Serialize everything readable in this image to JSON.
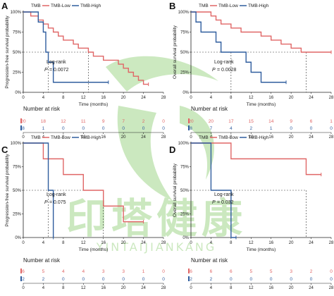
{
  "colors": {
    "low": "#e06666",
    "high": "#2f5d9e",
    "axis": "#222222",
    "watermark": "#6cbf4a"
  },
  "legend": {
    "title": "TMB",
    "low_label": "TMB-Low",
    "high_label": "TMB-High"
  },
  "watermark": {
    "text": "印塔健康",
    "sub": "YINTAIJIANKANG"
  },
  "chart_data": [
    {
      "letter": "A",
      "type": "line",
      "ylabel": "Progression-free survival probability",
      "xlabel": "Time (months)",
      "xlim": [
        0,
        28
      ],
      "ylim": [
        0,
        1
      ],
      "xticks": [
        "0",
        "4",
        "8",
        "12",
        "16",
        "20",
        "24",
        "28"
      ],
      "yticks": [
        "0%",
        "25%",
        "50%",
        "75%",
        "100%"
      ],
      "logrank": "Log-rank",
      "p_prefix": "P",
      "p_value": "= 0.0072",
      "median_x": [
        5,
        13
      ],
      "series": [
        {
          "name": "TMB-Low",
          "x": [
            0,
            1,
            1.5,
            2,
            3,
            4,
            5,
            6,
            7,
            8,
            9,
            10,
            11,
            12,
            13,
            14,
            16,
            18,
            19,
            20,
            21,
            22,
            23,
            24,
            25
          ],
          "y": [
            1,
            1,
            0.95,
            0.95,
            0.9,
            0.85,
            0.8,
            0.75,
            0.7,
            0.65,
            0.65,
            0.6,
            0.55,
            0.55,
            0.5,
            0.45,
            0.4,
            0.4,
            0.35,
            0.3,
            0.25,
            0.2,
            0.15,
            0.1,
            0.1
          ]
        },
        {
          "name": "TMB-High",
          "x": [
            0,
            1.5,
            3,
            4,
            4.5,
            5,
            6,
            17
          ],
          "y": [
            1,
            1,
            0.875,
            0.75,
            0.5,
            0.375,
            0.125,
            0.125
          ]
        }
      ],
      "risk": {
        "title": "Number at risk",
        "low": [
          "20",
          "18",
          "12",
          "11",
          "9",
          "7",
          "2",
          "0"
        ],
        "high": [
          "8",
          "1",
          "0",
          "0",
          "0",
          "0",
          "0",
          "0"
        ]
      }
    },
    {
      "letter": "B",
      "type": "line",
      "ylabel": "Overall survival probability",
      "xlabel": "Time (months)",
      "xlim": [
        0,
        28
      ],
      "ylim": [
        0,
        1
      ],
      "xticks": [
        "0",
        "4",
        "8",
        "12",
        "16",
        "20",
        "24",
        "28"
      ],
      "yticks": [
        "0%",
        "25%",
        "50%",
        "75%",
        "100%"
      ],
      "logrank": "Log-rank",
      "p_prefix": "P",
      "p_value": "= 0.0028",
      "median_x": [
        8,
        23
      ],
      "series": [
        {
          "name": "TMB-Low",
          "x": [
            0,
            3,
            4,
            5,
            6,
            8,
            10,
            12,
            14,
            16,
            18,
            20,
            21,
            22,
            23,
            28
          ],
          "y": [
            1,
            1,
            0.95,
            0.9,
            0.85,
            0.8,
            0.75,
            0.75,
            0.7,
            0.65,
            0.6,
            0.55,
            0.55,
            0.5,
            0.5,
            0.5
          ]
        },
        {
          "name": "TMB-High",
          "x": [
            0,
            1,
            2,
            3,
            4,
            5,
            6,
            8,
            10,
            11,
            12,
            13,
            14,
            19
          ],
          "y": [
            1,
            0.875,
            0.75,
            0.75,
            0.75,
            0.625,
            0.5,
            0.5,
            0.5,
            0.375,
            0.25,
            0.25,
            0.125,
            0.125
          ]
        }
      ],
      "risk": {
        "title": "Number at risk",
        "low": [
          "20",
          "20",
          "17",
          "15",
          "14",
          "9",
          "6",
          "1"
        ],
        "high": [
          "8",
          "7",
          "4",
          "2",
          "1",
          "0",
          "0",
          "0"
        ]
      }
    },
    {
      "letter": "C",
      "type": "line",
      "ylabel": "Progression-free survival probability",
      "xlabel": "Time (months)",
      "xlim": [
        0,
        28
      ],
      "ylim": [
        0,
        1
      ],
      "xticks": [
        "0",
        "4",
        "8",
        "12",
        "16",
        "20",
        "24",
        "28"
      ],
      "yticks": [
        "0%",
        "25%",
        "50%",
        "75%",
        "100%"
      ],
      "logrank": "Log-rank",
      "p_prefix": "P",
      "p_value": "= 0.075",
      "median_x": [
        5,
        16
      ],
      "series": [
        {
          "name": "TMB-Low",
          "x": [
            0,
            4,
            8,
            12,
            16,
            20,
            24
          ],
          "y": [
            1,
            0.833,
            0.667,
            0.5,
            0.333,
            0.167,
            0.167
          ]
        },
        {
          "name": "TMB-High",
          "x": [
            0,
            5,
            6
          ],
          "y": [
            1,
            0.5,
            0
          ]
        }
      ],
      "risk": {
        "title": "Number at risk",
        "low": [
          "6",
          "5",
          "4",
          "4",
          "3",
          "3",
          "1",
          "0"
        ],
        "high": [
          "2",
          "2",
          "0",
          "0",
          "0",
          "0",
          "0",
          "0"
        ]
      }
    },
    {
      "letter": "D",
      "type": "line",
      "ylabel": "Overall survival probability",
      "xlabel": "Time (months)",
      "xlim": [
        0,
        28
      ],
      "ylim": [
        0,
        1
      ],
      "xticks": [
        "0",
        "4",
        "8",
        "12",
        "16",
        "20",
        "24",
        "28"
      ],
      "yticks": [
        "0%",
        "25%",
        "50%",
        "75%",
        "100%"
      ],
      "logrank": "Log-rank",
      "p_prefix": "P",
      "p_value": "= 0.032",
      "median_x": [
        8,
        23
      ],
      "series": [
        {
          "name": "TMB-Low",
          "x": [
            0,
            8,
            23,
            26
          ],
          "y": [
            1,
            0.833,
            0.667,
            0.667
          ]
        },
        {
          "name": "TMB-High",
          "x": [
            0,
            4,
            8,
            9
          ],
          "y": [
            1,
            0.5,
            0,
            0
          ]
        }
      ],
      "risk": {
        "title": "Number at risk",
        "low": [
          "6",
          "6",
          "6",
          "5",
          "5",
          "3",
          "2",
          "0"
        ],
        "high": [
          "2",
          "2",
          "0",
          "0",
          "0",
          "0",
          "0",
          "0"
        ]
      }
    }
  ]
}
